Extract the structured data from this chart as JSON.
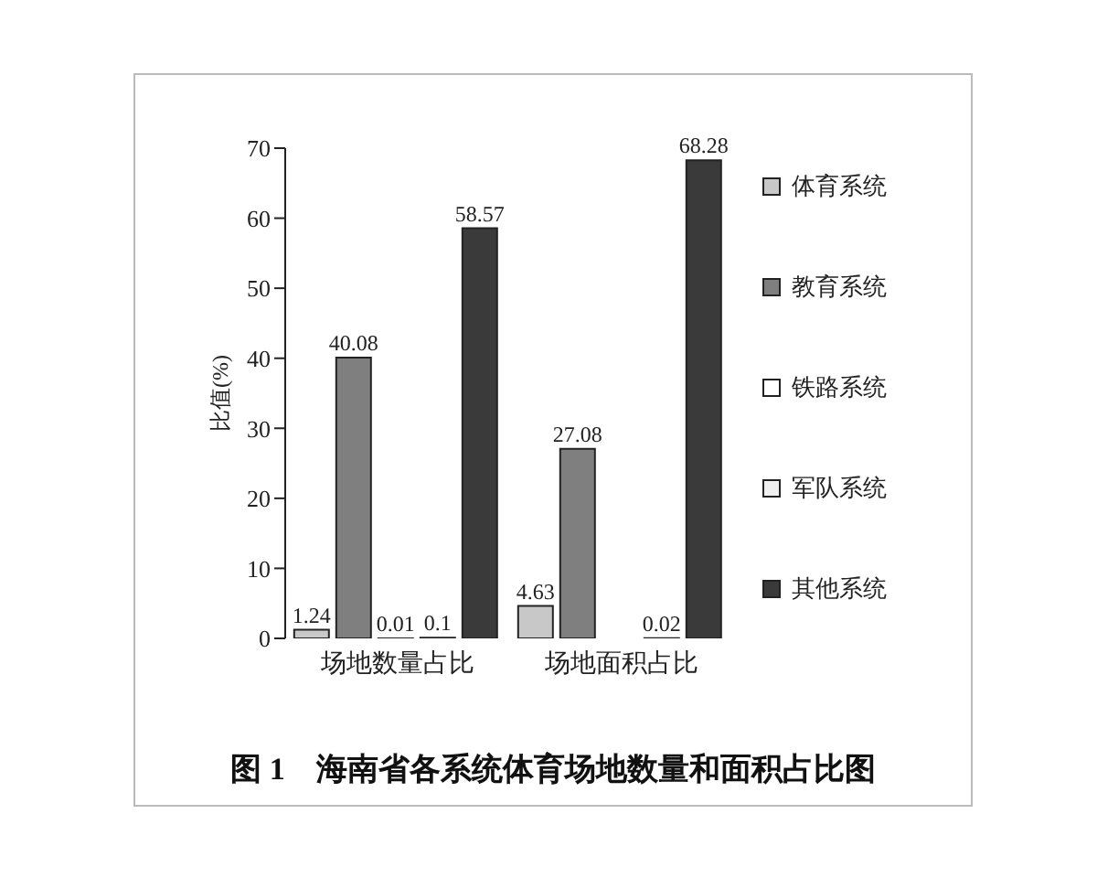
{
  "chart_data": {
    "type": "bar",
    "title": "图 1　海南省各系统体育场地数量和面积占比图",
    "ylabel": "比值(%)",
    "categories": [
      "场地数量占比",
      "场地面积占比"
    ],
    "series": [
      {
        "name": "体育系统",
        "color": "#c8c8c8",
        "values": [
          1.24,
          4.63
        ],
        "value_labels": [
          "1.24",
          "4.63"
        ]
      },
      {
        "name": "教育系统",
        "color": "#7f7f7f",
        "values": [
          40.08,
          27.08
        ],
        "value_labels": [
          "40.08",
          "27.08"
        ]
      },
      {
        "name": "铁路系统",
        "color": "#ffffff",
        "values": [
          0.01,
          null
        ],
        "value_labels": [
          "0.01",
          null
        ]
      },
      {
        "name": "军队系统",
        "color": "#f0f0f0",
        "values": [
          0.1,
          0.02
        ],
        "value_labels": [
          "0.1",
          "0.02"
        ]
      },
      {
        "name": "其他系统",
        "color": "#3a3a3a",
        "values": [
          58.57,
          68.28
        ],
        "value_labels": [
          "58.57",
          "68.28"
        ]
      }
    ],
    "ylim": [
      0,
      70
    ],
    "yticks": [
      0,
      10,
      20,
      30,
      40,
      50,
      60,
      70
    ],
    "legend": "right"
  }
}
